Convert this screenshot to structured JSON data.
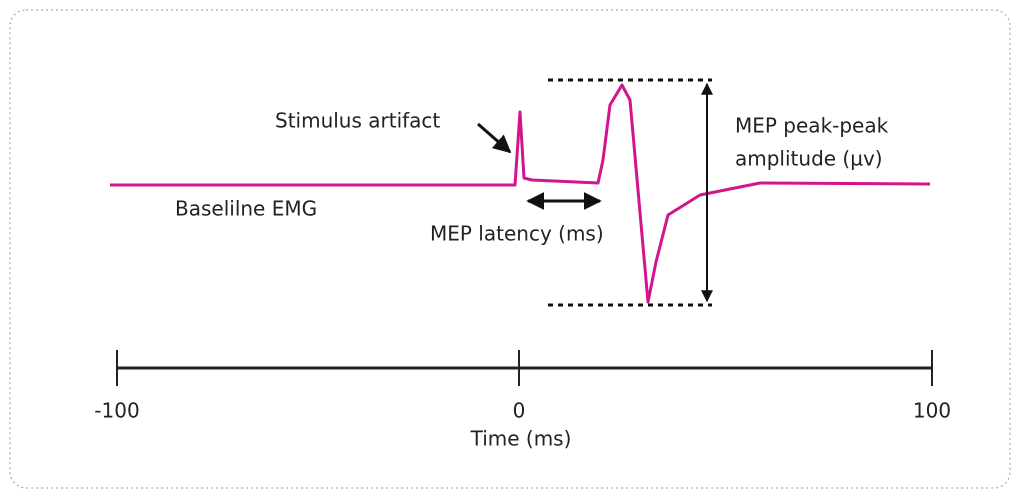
{
  "annotations": {
    "stimulus": "Stimulus artifact",
    "baseline": "Baselilne EMG",
    "latency": "MEP latency (ms)",
    "amplitude": [
      "MEP peak-peak",
      "amplitude (µv)"
    ]
  },
  "axis": {
    "ticks": [
      "-100",
      "0",
      "100"
    ],
    "label": "Time (ms)"
  }
}
